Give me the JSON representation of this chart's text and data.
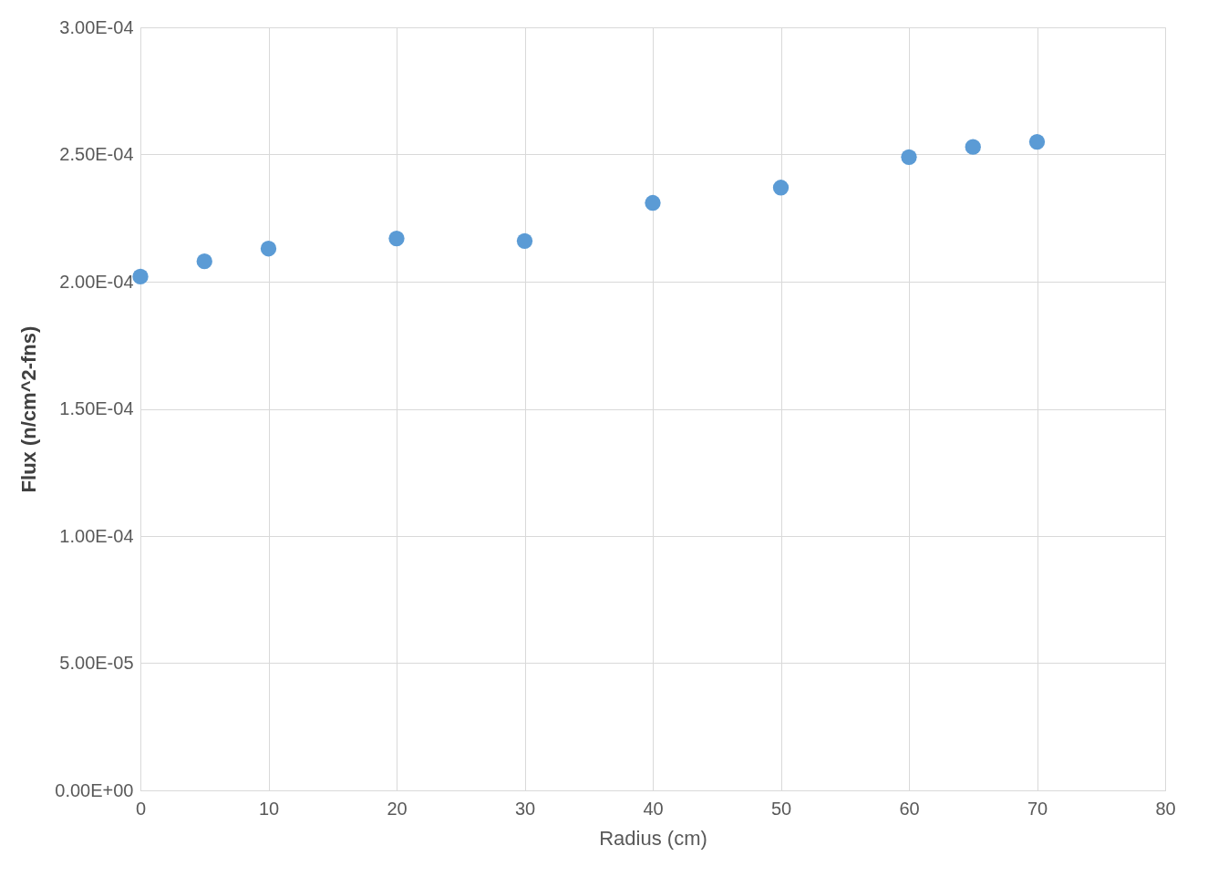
{
  "chart_data": {
    "type": "scatter",
    "xlabel": "Radius (cm)",
    "ylabel": "Flux (n/cm^2-fns)",
    "x": [
      0,
      5,
      10,
      20,
      30,
      40,
      50,
      60,
      65,
      70
    ],
    "series": [
      {
        "color": "#5b9bd5",
        "values": [
          0.000202,
          0.000208,
          0.000213,
          0.000217,
          0.000216,
          0.000231,
          0.000237,
          0.000249,
          0.000253,
          0.000255
        ]
      }
    ],
    "xlim": [
      0,
      80
    ],
    "xticks": [
      0,
      10,
      20,
      30,
      40,
      50,
      60,
      70,
      80
    ],
    "ylim": [
      0,
      0.0003
    ],
    "yticks": [
      {
        "value": 0,
        "label": "0.00E+00"
      },
      {
        "value": 5e-05,
        "label": "5.00E-05"
      },
      {
        "value": 0.0001,
        "label": "1.00E-04"
      },
      {
        "value": 0.00015,
        "label": "1.50E-04"
      },
      {
        "value": 0.0002,
        "label": "2.00E-04"
      },
      {
        "value": 0.00025,
        "label": "2.50E-04"
      },
      {
        "value": 0.0003,
        "label": "3.00E-04"
      }
    ],
    "grid": true,
    "marker": "circle",
    "legend": false
  }
}
